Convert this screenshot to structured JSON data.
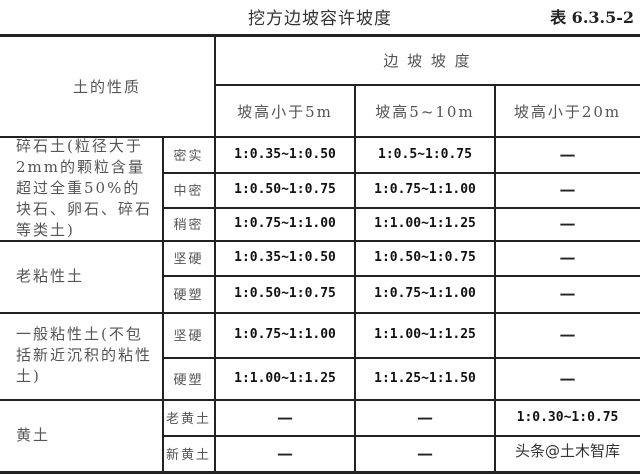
{
  "title": "挖方边坡容许坡度",
  "table_number": "表 6.3.5-2",
  "headers": {
    "soil": "土的性质",
    "slope": "边 坡 坡 度",
    "cols": [
      "坡高小于5m",
      "坡高5~10m",
      "坡高小于20m"
    ]
  },
  "groups": [
    {
      "name": "碎石土(粒径大于2mm的颗粒含量超过全重50%的块石、卵石、碎石等类土)",
      "rows": [
        {
          "state": "密实",
          "values": [
            "1:0.35~1:0.50",
            "1:0.5~1:0.75",
            "—"
          ]
        },
        {
          "state": "中密",
          "values": [
            "1:0.50~1:0.75",
            "1:0.75~1:1.00",
            "—"
          ]
        },
        {
          "state": "稍密",
          "values": [
            "1:0.75~1:1.00",
            "1:1.00~1:1.25",
            "—"
          ]
        }
      ]
    },
    {
      "name": "老粘性土",
      "rows": [
        {
          "state": "坚硬",
          "values": [
            "1:0.35~1:0.50",
            "1:0.50~1:0.75",
            "—"
          ]
        },
        {
          "state": "硬塑",
          "values": [
            "1:0.50~1:0.75",
            "1:0.75~1:1.00",
            "—"
          ]
        }
      ]
    },
    {
      "name": "一般粘性土(不包括新近沉积的粘性土)",
      "rows": [
        {
          "state": "坚硬",
          "values": [
            "1:0.75~1:1.00",
            "1:1.00~1:1.25",
            "—"
          ]
        },
        {
          "state": "硬塑",
          "values": [
            "1:1.00~1:1.25",
            "1:1.25~1:1.50",
            "—"
          ]
        }
      ]
    },
    {
      "name": "黄土",
      "rows": [
        {
          "state": "老黄土",
          "values": [
            "—",
            "—",
            "1:0.30~1:0.75"
          ]
        },
        {
          "state": "新黄土",
          "values": [
            "—",
            "—",
            ""
          ]
        }
      ]
    }
  ],
  "watermark": "头条@土木智库"
}
